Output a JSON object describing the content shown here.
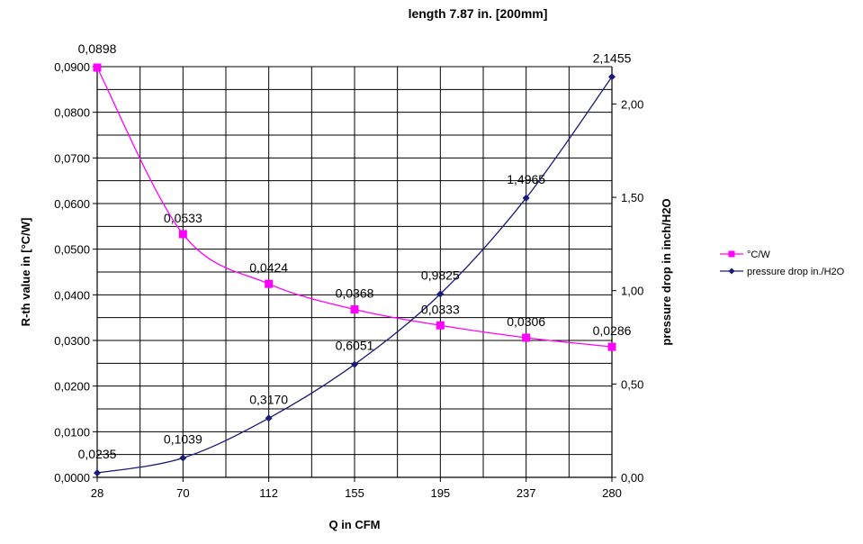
{
  "chart_data": {
    "type": "line",
    "title": "length 7.87 in. [200mm]",
    "xlabel": "Q in CFM",
    "ylabel": "R-th value in [°C/W]",
    "y2label": "pressure drop in inch/H2O",
    "categories": [
      "28",
      "70",
      "112",
      "155",
      "195",
      "237",
      "280"
    ],
    "ylim": [
      0,
      0.09
    ],
    "y2lim": [
      0,
      2.2
    ],
    "grid": true,
    "legend_position": "right",
    "y_ticks": [
      "0,0000",
      "0,0100",
      "0,0200",
      "0,0300",
      "0,0400",
      "0,0500",
      "0,0600",
      "0,0700",
      "0,0800",
      "0,0900"
    ],
    "y2_ticks": [
      "0,00",
      "0,50",
      "1,00",
      "1,50",
      "2,00"
    ],
    "series": [
      {
        "name": "°C/W",
        "axis": "left",
        "color": "#ff00ff",
        "marker": "square",
        "values": [
          0.0898,
          0.0533,
          0.0424,
          0.0368,
          0.0333,
          0.0306,
          0.0286
        ],
        "labels": [
          "0,0898",
          "0,0533",
          "0,0424",
          "0,0368",
          "0,0333",
          "0,0306",
          "0,0286"
        ]
      },
      {
        "name": "pressure drop in./H2O",
        "axis": "right",
        "color": "#1a1a7a",
        "marker": "diamond",
        "values": [
          0.0235,
          0.1039,
          0.317,
          0.6051,
          0.9825,
          1.4965,
          2.1455
        ],
        "labels": [
          "0,0235",
          "0,1039",
          "0,3170",
          "0,6051",
          "0,9825",
          "1,4965",
          "2,1455"
        ]
      }
    ]
  }
}
